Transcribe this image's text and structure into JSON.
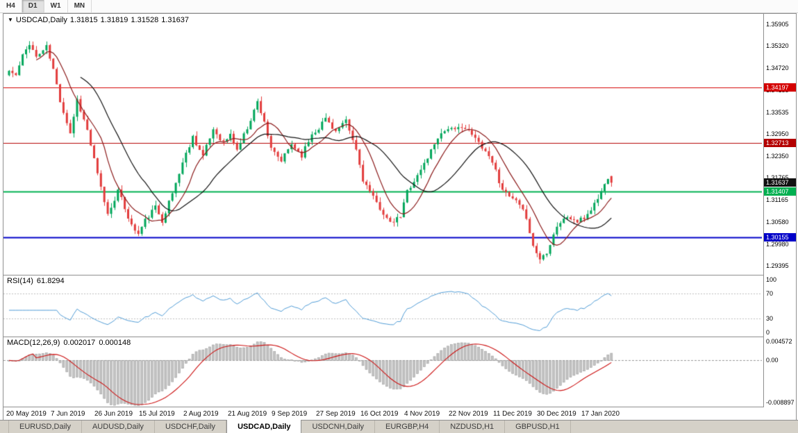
{
  "toolbar": {
    "timeframe_buttons": [
      {
        "label": "H4",
        "active": false
      },
      {
        "label": "D1",
        "active": true
      },
      {
        "label": "W1",
        "active": false
      },
      {
        "label": "MN",
        "active": false
      }
    ]
  },
  "header": {
    "dropdown_icon": "▼",
    "symbol": "USDCAD,Daily",
    "open": "1.31815",
    "high": "1.31819",
    "low": "1.31528",
    "close": "1.31637"
  },
  "chart_data": {
    "type": "candlestick",
    "symbol": "USDCAD",
    "timeframe": "Daily",
    "current_ohlc": {
      "open": 1.31815,
      "high": 1.31819,
      "low": 1.31528,
      "close": 1.31637
    },
    "price_axis": {
      "ticks": [
        "1.35905",
        "1.35320",
        "1.34720",
        "1.34135",
        "1.33535",
        "1.32950",
        "1.32350",
        "1.31765",
        "1.31165",
        "1.30580",
        "1.29980",
        "1.29395"
      ],
      "top_price": 1.36186,
      "bottom_price": 1.29154
    },
    "date_labels": [
      "20 May 2019",
      "7 Jun 2019",
      "26 Jun 2019",
      "15 Jul 2019",
      "2 Aug 2019",
      "21 Aug 2019",
      "9 Sep 2019",
      "27 Sep 2019",
      "16 Oct 2019",
      "4 Nov 2019",
      "22 Nov 2019",
      "11 Dec 2019",
      "30 Dec 2019",
      "17 Jan 2020"
    ],
    "candles_per_date_tick": 13,
    "candle_count": 178,
    "horizontal_lines": [
      {
        "value": 1.34197,
        "label": "1.34197",
        "color": "#d40000",
        "thickness": 1
      },
      {
        "value": 1.32713,
        "label": "1.32713",
        "color": "#b40000",
        "thickness": 1
      },
      {
        "value": 1.31407,
        "label": "1.31407",
        "color": "#00b050",
        "thickness": 2
      },
      {
        "value": 1.30155,
        "label": "1.30155",
        "color": "#0000c8",
        "thickness": 2
      }
    ],
    "current_price_marker": {
      "value": 1.31637,
      "label": "1.31637",
      "bg": "#111111"
    },
    "style": {
      "up_color": "#00a65a",
      "down_color": "#e23b3b",
      "ma_fast": {
        "period": 9,
        "color": "#8b1a1a"
      },
      "ma_slow": {
        "period": 22,
        "color": "#111111"
      }
    },
    "close_anchors": [
      [
        0,
        1.3465
      ],
      [
        2,
        1.3452
      ],
      [
        4,
        1.3505
      ],
      [
        6,
        1.354
      ],
      [
        8,
        1.3502
      ],
      [
        11,
        1.353
      ],
      [
        13,
        1.3468
      ],
      [
        15,
        1.3385
      ],
      [
        18,
        1.3298
      ],
      [
        20,
        1.3388
      ],
      [
        23,
        1.3305
      ],
      [
        26,
        1.3185
      ],
      [
        29,
        1.3078
      ],
      [
        32,
        1.3142
      ],
      [
        34,
        1.3095
      ],
      [
        36,
        1.3048
      ],
      [
        38,
        1.3025
      ],
      [
        40,
        1.3062
      ],
      [
        43,
        1.3098
      ],
      [
        45,
        1.3062
      ],
      [
        48,
        1.3135
      ],
      [
        51,
        1.3218
      ],
      [
        54,
        1.3288
      ],
      [
        57,
        1.3235
      ],
      [
        60,
        1.3308
      ],
      [
        63,
        1.3272
      ],
      [
        65,
        1.3292
      ],
      [
        67,
        1.3252
      ],
      [
        70,
        1.3312
      ],
      [
        73,
        1.3382
      ],
      [
        75,
        1.333
      ],
      [
        77,
        1.3252
      ],
      [
        80,
        1.3222
      ],
      [
        83,
        1.3268
      ],
      [
        86,
        1.3238
      ],
      [
        89,
        1.3295
      ],
      [
        91,
        1.3312
      ],
      [
        93,
        1.3338
      ],
      [
        96,
        1.3302
      ],
      [
        99,
        1.3328
      ],
      [
        102,
        1.3252
      ],
      [
        104,
        1.3172
      ],
      [
        107,
        1.3122
      ],
      [
        110,
        1.3082
      ],
      [
        112,
        1.3052
      ],
      [
        115,
        1.3072
      ],
      [
        117,
        1.3142
      ],
      [
        120,
        1.3182
      ],
      [
        123,
        1.3232
      ],
      [
        126,
        1.3288
      ],
      [
        129,
        1.3312
      ],
      [
        131,
        1.3302
      ],
      [
        133,
        1.3318
      ],
      [
        136,
        1.3292
      ],
      [
        139,
        1.3262
      ],
      [
        142,
        1.3222
      ],
      [
        144,
        1.3168
      ],
      [
        146,
        1.3132
      ],
      [
        149,
        1.3112
      ],
      [
        152,
        1.3072
      ],
      [
        154,
        1.2992
      ],
      [
        156,
        1.2958
      ],
      [
        158,
        1.2978
      ],
      [
        161,
        1.3048
      ],
      [
        164,
        1.3072
      ],
      [
        167,
        1.3058
      ],
      [
        169,
        1.3068
      ],
      [
        171,
        1.3092
      ],
      [
        173,
        1.3122
      ],
      [
        175,
        1.3158
      ],
      [
        176,
        1.318
      ],
      [
        177,
        1.31637
      ]
    ],
    "seed": 11,
    "noise": 0.0011,
    "wick_noise": 0.0013,
    "indicators": {
      "rsi": {
        "name": "RSI(14)",
        "value": "61.8294",
        "period": 14,
        "ticks": [
          "100",
          "70",
          "30",
          "0"
        ],
        "levels": [
          70,
          30
        ],
        "color": "#4f9bd5",
        "range": [
          0,
          100
        ]
      },
      "macd": {
        "name": "MACD(12,26,9)",
        "main_value": "0.002017",
        "signal_value": "0.000148",
        "fast": 12,
        "slow": 26,
        "signal": 9,
        "axis_ticks": [
          {
            "label": "0.004572",
            "value": 0.004572
          },
          {
            "label": "0.00",
            "value": 0.0
          },
          {
            "label": "-0.008897",
            "value": -0.008897
          }
        ],
        "range": [
          -0.0095,
          0.00475
        ],
        "hist_color": "#c4c4c4",
        "hist_edge": "#9b9b9b",
        "line_color": "#cc1111"
      }
    }
  },
  "bottom_tabs": [
    {
      "label": "EURUSD,Daily",
      "active": false
    },
    {
      "label": "AUDUSD,Daily",
      "active": false
    },
    {
      "label": "USDCHF,Daily",
      "active": false
    },
    {
      "label": "USDCAD,Daily",
      "active": true
    },
    {
      "label": "USDCNH,Daily",
      "active": false
    },
    {
      "label": "EURGBP,H4",
      "active": false
    },
    {
      "label": "NZDUSD,H1",
      "active": false
    },
    {
      "label": "GBPUSD,H1",
      "active": false
    }
  ]
}
